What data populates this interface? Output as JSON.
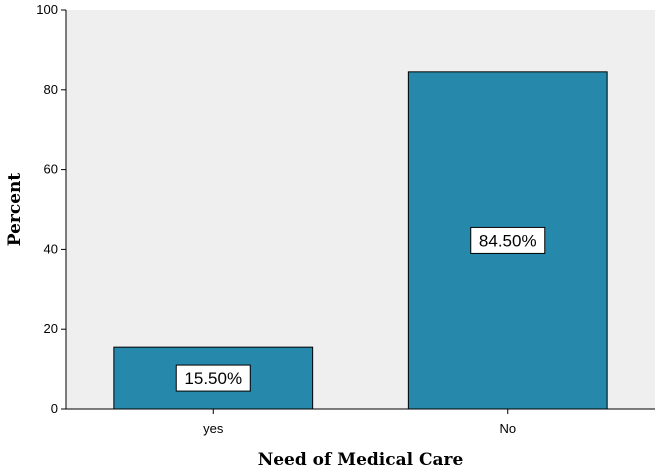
{
  "chart_data": {
    "type": "bar",
    "categories": [
      "yes",
      "No"
    ],
    "values": [
      15.5,
      84.5
    ],
    "data_labels": [
      "15.50%",
      "84.50%"
    ],
    "title": "",
    "xlabel": "Need of Medical Care",
    "ylabel": "Percent",
    "ylim": [
      0,
      100
    ],
    "yticks": [
      0,
      20,
      40,
      60,
      80,
      100
    ],
    "grid": false,
    "legend": "none",
    "bar_color": "#2689ab",
    "plot_background": "#efefef"
  }
}
